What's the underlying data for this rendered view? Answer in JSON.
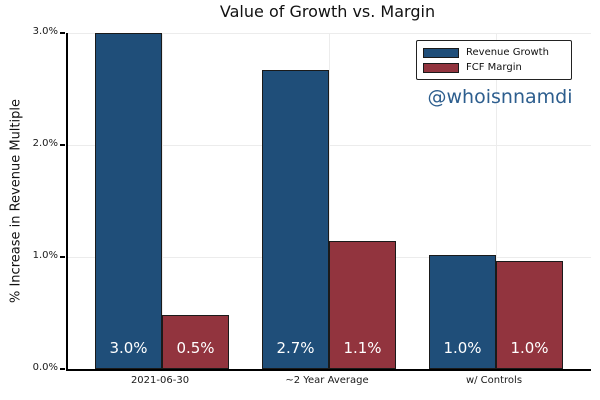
{
  "figure": {
    "title": "Value of Growth vs. Margin",
    "ylabel": "% Increase in Revenue Multiple",
    "watermark": "@whoisnnamdi"
  },
  "colors": {
    "revenue_growth": "#1f4e79",
    "fcf_margin": "#92343e",
    "bar_edge": "#1a1a1a",
    "grid": "#ececec",
    "axis": "#000000",
    "watermark": "#2d5e8e",
    "background": "#ffffff"
  },
  "chart_data": {
    "type": "bar",
    "title": "Value of Growth vs. Margin",
    "xlabel": "",
    "ylabel": "% Increase in Revenue Multiple",
    "categories": [
      "2021-06-30",
      "~2 Year Average",
      "w/ Controls"
    ],
    "series": [
      {
        "name": "Revenue Growth",
        "color": "#1f4e79",
        "values": [
          3.0,
          2.67,
          1.02
        ],
        "bar_labels": [
          "3.0%",
          "2.7%",
          "1.0%"
        ]
      },
      {
        "name": "FCF Margin",
        "color": "#92343e",
        "values": [
          0.48,
          1.14,
          0.96
        ],
        "bar_labels": [
          "0.5%",
          "1.1%",
          "1.0%"
        ]
      }
    ],
    "ylim": [
      0,
      3.0
    ],
    "ytick_values": [
      0,
      1,
      2,
      3
    ],
    "ytick_labels": [
      "0.0%",
      "1.0%",
      "2.0%",
      "3.0%"
    ],
    "grid": true,
    "legend_position": "upper right",
    "annotations": [
      "@whoisnnamdi"
    ]
  }
}
